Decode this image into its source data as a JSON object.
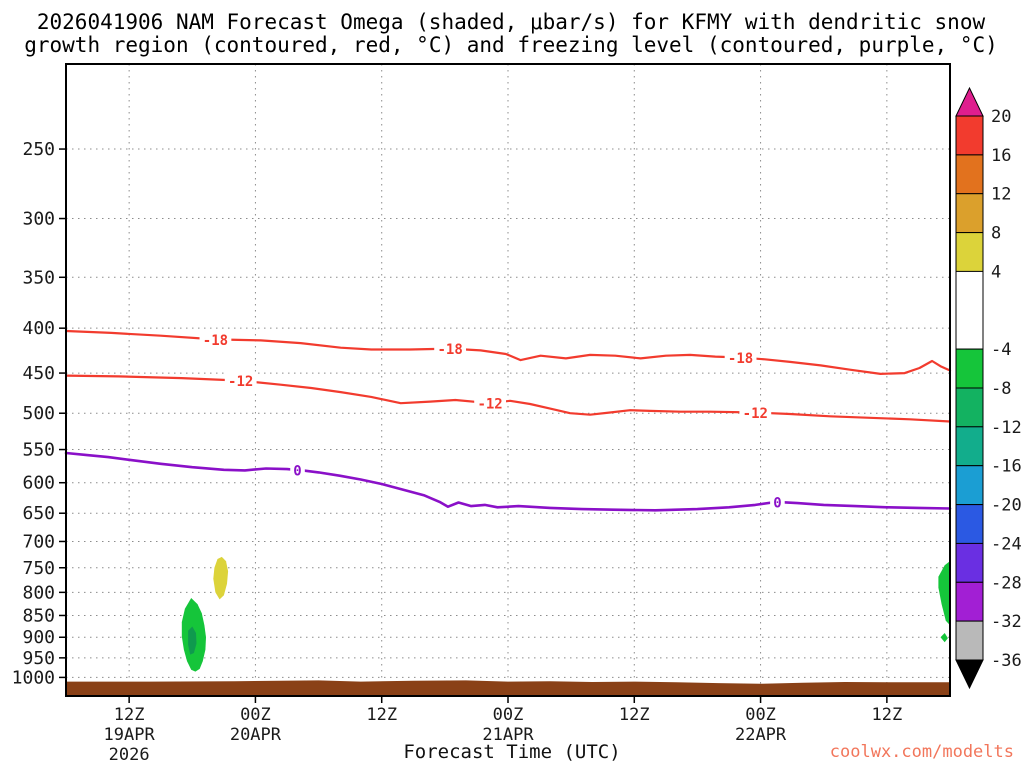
{
  "title": {
    "line1": "2026041906 NAM Forecast Omega (shaded, μbar/s) for KFMY with dendritic snow",
    "line2": "growth region (contoured, red, °C) and freezing level (contoured, purple, °C)"
  },
  "xlabel": "Forecast Time (UTC)",
  "watermark": "coolwx.com/modelts",
  "colors": {
    "background": "#ffffff",
    "axis": "#000000",
    "grid": "#8c8c8c",
    "tick_text": "#1a1a1a",
    "watermark": "#f2765b"
  },
  "chart_data": {
    "type": "contour",
    "description": "Time-height cross section of NAM forecast omega (shaded), dendritic snow growth region (red contours) and freezing level (purple contour) for KFMY",
    "x_axis": {
      "unit": "forecast hours (06Z 19APR2026 + h)",
      "range": [
        0,
        84
      ],
      "ticks": [
        {
          "hour": 6,
          "label": "12Z",
          "date": "19APR",
          "year": "2026"
        },
        {
          "hour": 18,
          "label": "00Z",
          "date": "20APR"
        },
        {
          "hour": 30,
          "label": "12Z"
        },
        {
          "hour": 42,
          "label": "00Z",
          "date": "21APR"
        },
        {
          "hour": 54,
          "label": "12Z"
        },
        {
          "hour": 66,
          "label": "00Z",
          "date": "22APR"
        },
        {
          "hour": 78,
          "label": "12Z"
        }
      ]
    },
    "y_axis": {
      "unit": "hPa",
      "scale": "log",
      "range": [
        200,
        1050
      ],
      "ticks": [
        250,
        300,
        350,
        400,
        450,
        500,
        550,
        600,
        650,
        700,
        750,
        800,
        850,
        900,
        950,
        1000
      ]
    },
    "grid": {
      "style": "dotted",
      "on": true
    },
    "contours": [
      {
        "name": "dendritic-growth-minus18C",
        "value": -18,
        "color": "#f23b2e",
        "width": 2.2,
        "labels": [
          {
            "hour": 14.2,
            "p": 412
          },
          {
            "hour": 36.5,
            "p": 422
          },
          {
            "hour": 64.1,
            "p": 432
          }
        ],
        "points": [
          [
            0,
            403
          ],
          [
            4.3,
            405
          ],
          [
            9,
            408
          ],
          [
            14.2,
            412
          ],
          [
            18.5,
            413
          ],
          [
            22.3,
            416
          ],
          [
            26.1,
            421
          ],
          [
            29,
            423
          ],
          [
            32.7,
            423
          ],
          [
            36.5,
            422
          ],
          [
            39.4,
            424
          ],
          [
            41.8,
            428
          ],
          [
            43.2,
            435
          ],
          [
            45.1,
            430
          ],
          [
            47.5,
            433
          ],
          [
            49.8,
            429
          ],
          [
            52.2,
            430
          ],
          [
            54.6,
            433
          ],
          [
            57,
            430
          ],
          [
            59.3,
            429
          ],
          [
            61.7,
            431
          ],
          [
            64.1,
            432
          ],
          [
            66.4,
            434
          ],
          [
            68.8,
            437
          ],
          [
            71.7,
            441
          ],
          [
            74.5,
            446
          ],
          [
            77.4,
            451
          ],
          [
            79.7,
            450
          ],
          [
            81.1,
            444
          ],
          [
            82.3,
            436
          ],
          [
            83.1,
            442
          ],
          [
            84,
            447
          ]
        ]
      },
      {
        "name": "dendritic-growth-minus12C",
        "value": -12,
        "color": "#f23b2e",
        "width": 2.2,
        "labels": [
          {
            "hour": 16.6,
            "p": 459
          },
          {
            "hour": 40.3,
            "p": 487
          },
          {
            "hour": 65.5,
            "p": 499
          }
        ],
        "points": [
          [
            0,
            453
          ],
          [
            5,
            454
          ],
          [
            11,
            456
          ],
          [
            16.6,
            459
          ],
          [
            20.4,
            464
          ],
          [
            23.3,
            468
          ],
          [
            26.1,
            473
          ],
          [
            29,
            479
          ],
          [
            31.8,
            487
          ],
          [
            34.6,
            485
          ],
          [
            37,
            483
          ],
          [
            40.3,
            487
          ],
          [
            42.2,
            484
          ],
          [
            44.1,
            488
          ],
          [
            46,
            494
          ],
          [
            47.9,
            500
          ],
          [
            49.8,
            502
          ],
          [
            51.7,
            499
          ],
          [
            53.6,
            496
          ],
          [
            55.5,
            497
          ],
          [
            58.4,
            498
          ],
          [
            61.2,
            498
          ],
          [
            65.5,
            499
          ],
          [
            68.8,
            501
          ],
          [
            72.6,
            504
          ],
          [
            76.4,
            506
          ],
          [
            80.2,
            508
          ],
          [
            84,
            511
          ]
        ]
      },
      {
        "name": "freezing-level-0C",
        "value": 0,
        "color": "#8a10c8",
        "width": 2.6,
        "labels": [
          {
            "hour": 22,
            "p": 580
          },
          {
            "hour": 67.6,
            "p": 631
          }
        ],
        "points": [
          [
            0,
            555
          ],
          [
            2,
            558
          ],
          [
            4,
            561
          ],
          [
            6,
            565
          ],
          [
            9,
            571
          ],
          [
            12,
            576
          ],
          [
            15,
            580
          ],
          [
            17,
            581
          ],
          [
            19,
            578
          ],
          [
            21,
            579
          ],
          [
            22.5,
            581
          ],
          [
            24,
            584
          ],
          [
            26,
            589
          ],
          [
            28,
            595
          ],
          [
            30,
            602
          ],
          [
            32,
            611
          ],
          [
            34,
            620
          ],
          [
            35.5,
            631
          ],
          [
            36.3,
            639
          ],
          [
            37.3,
            632
          ],
          [
            38.5,
            638
          ],
          [
            39.8,
            636
          ],
          [
            41,
            640
          ],
          [
            43,
            638
          ],
          [
            46,
            641
          ],
          [
            49,
            643
          ],
          [
            52,
            644
          ],
          [
            56,
            645
          ],
          [
            60,
            643
          ],
          [
            63,
            640
          ],
          [
            65.5,
            636
          ],
          [
            67.5,
            631
          ],
          [
            69.5,
            633
          ],
          [
            72,
            636
          ],
          [
            75,
            638
          ],
          [
            78,
            640
          ],
          [
            81,
            641
          ],
          [
            84,
            642
          ]
        ]
      }
    ],
    "shaded_regions": [
      {
        "name": "omega-green-region-19apr",
        "value_range": [
          -8,
          -4
        ],
        "color": "#15c53a",
        "polygon": [
          [
            11.9,
            812
          ],
          [
            12.5,
            825
          ],
          [
            12.9,
            845
          ],
          [
            13.15,
            872
          ],
          [
            13.3,
            900
          ],
          [
            13.25,
            930
          ],
          [
            13.0,
            958
          ],
          [
            12.7,
            978
          ],
          [
            12.3,
            985
          ],
          [
            11.9,
            980
          ],
          [
            11.5,
            958
          ],
          [
            11.2,
            930
          ],
          [
            11.0,
            898
          ],
          [
            11.0,
            865
          ],
          [
            11.3,
            835
          ]
        ]
      },
      {
        "name": "omega-green-region-19apr-core",
        "value_range": [
          -12,
          -8
        ],
        "color": "#0f9a4e",
        "polygon": [
          [
            11.6,
            885
          ],
          [
            12.0,
            875
          ],
          [
            12.35,
            890
          ],
          [
            12.4,
            915
          ],
          [
            12.15,
            938
          ],
          [
            11.8,
            942
          ],
          [
            11.6,
            918
          ]
        ]
      },
      {
        "name": "omega-yellow-region-20apr",
        "value_range": [
          4,
          8
        ],
        "color": "#dcd33a",
        "polygon": [
          [
            14.1,
            750
          ],
          [
            14.4,
            733
          ],
          [
            14.8,
            729
          ],
          [
            15.2,
            737
          ],
          [
            15.4,
            757
          ],
          [
            15.3,
            782
          ],
          [
            15.0,
            806
          ],
          [
            14.6,
            815
          ],
          [
            14.2,
            800
          ],
          [
            14.0,
            772
          ]
        ]
      },
      {
        "name": "omega-green-region-right-edge",
        "value_range": [
          -8,
          -4
        ],
        "color": "#15c53a",
        "polygon": [
          [
            82.9,
            768
          ],
          [
            83.5,
            745
          ],
          [
            84,
            737
          ],
          [
            84,
            872
          ],
          [
            83.6,
            862
          ],
          [
            83.2,
            825
          ],
          [
            82.9,
            790
          ]
        ]
      },
      {
        "name": "omega-green-speck-right-edge",
        "value_range": [
          -8,
          -4
        ],
        "color": "#15c53a",
        "polygon": [
          [
            83.1,
            900
          ],
          [
            83.5,
            890
          ],
          [
            83.8,
            902
          ],
          [
            83.5,
            912
          ]
        ]
      }
    ],
    "terrain": {
      "name": "surface-terrain-band",
      "color": "#8a4117",
      "top_profile": [
        [
          0,
          1011
        ],
        [
          8,
          1011
        ],
        [
          16,
          1010
        ],
        [
          24,
          1008
        ],
        [
          28,
          1011
        ],
        [
          33,
          1009
        ],
        [
          38,
          1008
        ],
        [
          42,
          1011
        ],
        [
          46,
          1010
        ],
        [
          50,
          1012
        ],
        [
          54,
          1011
        ],
        [
          58,
          1013
        ],
        [
          62,
          1015
        ],
        [
          66,
          1017
        ],
        [
          70,
          1014
        ],
        [
          74,
          1012
        ],
        [
          78,
          1013
        ],
        [
          84,
          1013
        ]
      ]
    },
    "colorbar": {
      "title": "omega (μbar/s)",
      "ticks": [
        20,
        16,
        12,
        8,
        4,
        -4,
        -8,
        -12,
        -16,
        -20,
        -24,
        -28,
        -32,
        -36
      ],
      "over_color": "#df1e8e",
      "under_color": "#000000",
      "segments": [
        {
          "from": 16,
          "to": 20,
          "color": "#f23b2e"
        },
        {
          "from": 12,
          "to": 16,
          "color": "#e2721e"
        },
        {
          "from": 8,
          "to": 12,
          "color": "#dba02c"
        },
        {
          "from": 4,
          "to": 8,
          "color": "#dcd33a"
        },
        {
          "from": -4,
          "to": 4,
          "color": "#ffffff"
        },
        {
          "from": -8,
          "to": -4,
          "color": "#15c53a"
        },
        {
          "from": -12,
          "to": -8,
          "color": "#13b261"
        },
        {
          "from": -16,
          "to": -12,
          "color": "#12ad8c"
        },
        {
          "from": -20,
          "to": -16,
          "color": "#1b9ed3"
        },
        {
          "from": -24,
          "to": -20,
          "color": "#2b59e3"
        },
        {
          "from": -28,
          "to": -24,
          "color": "#6a2fe2"
        },
        {
          "from": -32,
          "to": -28,
          "color": "#a21fd4"
        },
        {
          "from": -36,
          "to": -32,
          "color": "#b9b9b9"
        }
      ]
    }
  }
}
